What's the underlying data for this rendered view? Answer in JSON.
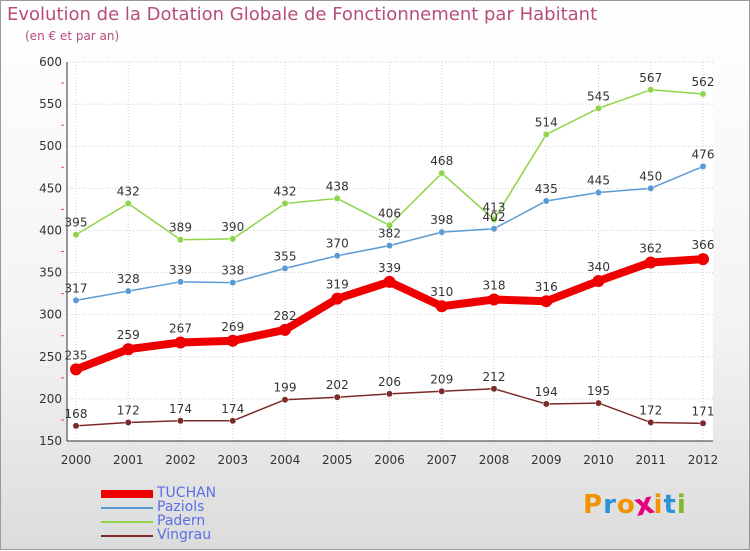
{
  "title": "Evolution de la Dotation Globale de Fonctionnement par Habitant",
  "subtitle": "(en € et par an)",
  "logo": {
    "text": "Proxiti",
    "letters": [
      "P",
      "r",
      "o",
      "x",
      "i",
      "t",
      "i"
    ],
    "colors": [
      "#f39200",
      "#2e93d6",
      "#f39200",
      "#e5007e",
      "#f39200",
      "#2e93d6",
      "#85b72a"
    ]
  },
  "chart_data": {
    "type": "line",
    "x": [
      "2000",
      "2001",
      "2002",
      "2003",
      "2004",
      "2005",
      "2006",
      "2007",
      "2008",
      "2009",
      "2010",
      "2011",
      "2012"
    ],
    "ylim": [
      150,
      600
    ],
    "yticks": [
      150,
      200,
      250,
      300,
      350,
      400,
      450,
      500,
      550,
      600
    ],
    "grid": true,
    "legend": "bottom-left",
    "series": [
      {
        "name": "TUCHAN",
        "color": "#ee0000",
        "values": [
          235,
          259,
          267,
          269,
          282,
          319,
          339,
          310,
          318,
          316,
          340,
          362,
          366
        ]
      },
      {
        "name": "Paziols",
        "color": "#5b9bd5",
        "values": [
          317,
          328,
          339,
          338,
          355,
          370,
          382,
          398,
          402,
          435,
          445,
          450,
          476
        ]
      },
      {
        "name": "Padern",
        "color": "#8fd449",
        "values": [
          395,
          432,
          389,
          390,
          432,
          438,
          406,
          468,
          413,
          514,
          545,
          567,
          562
        ]
      },
      {
        "name": "Vingrau",
        "color": "#7a2a2a",
        "values": [
          168,
          172,
          174,
          174,
          199,
          202,
          206,
          209,
          212,
          194,
          195,
          172,
          171
        ]
      }
    ]
  }
}
